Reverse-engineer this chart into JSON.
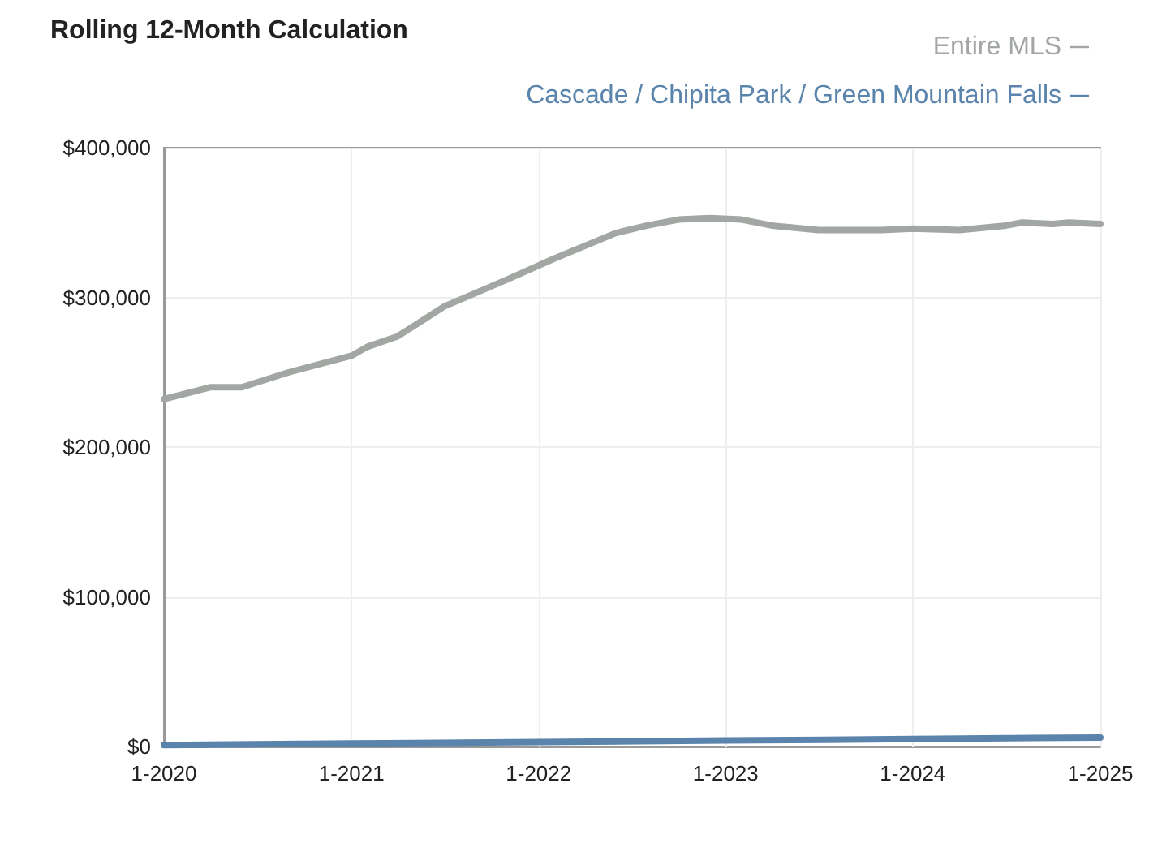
{
  "chart_data": {
    "type": "line",
    "title": "Rolling 12-Month Calculation",
    "xlim": [
      "2020-01",
      "2025-01"
    ],
    "xticks": [
      {
        "value": "2020-01",
        "label": "1-2020"
      },
      {
        "value": "2021-01",
        "label": "1-2021"
      },
      {
        "value": "2022-01",
        "label": "1-2022"
      },
      {
        "value": "2023-01",
        "label": "1-2023"
      },
      {
        "value": "2024-01",
        "label": "1-2024"
      },
      {
        "value": "2025-01",
        "label": "1-2025"
      }
    ],
    "ylim": [
      0,
      400000
    ],
    "yticks": [
      {
        "value": 0,
        "label": "$0"
      },
      {
        "value": 100000,
        "label": "$100,000"
      },
      {
        "value": 200000,
        "label": "$200,000"
      },
      {
        "value": 300000,
        "label": "$300,000"
      },
      {
        "value": 400000,
        "label": "$400,000"
      }
    ],
    "grid": true,
    "legend": "top right",
    "marker": "none",
    "line_style": "solid",
    "series": [
      {
        "name": "Entire MLS",
        "color": "#a3a7a3",
        "x": [
          "2020-01",
          "2020-04",
          "2020-06",
          "2020-09",
          "2021-01",
          "2021-02",
          "2021-04",
          "2021-07",
          "2021-11",
          "2022-02",
          "2022-06",
          "2022-08",
          "2022-10",
          "2022-12",
          "2023-02",
          "2023-04",
          "2023-07",
          "2023-11",
          "2024-01",
          "2024-04",
          "2024-07",
          "2024-08",
          "2024-10",
          "2024-11",
          "2025-01"
        ],
        "values": [
          232000,
          240000,
          240000,
          250000,
          261000,
          267000,
          274000,
          294000,
          312000,
          326000,
          343000,
          348000,
          352000,
          353000,
          352000,
          348000,
          345000,
          345000,
          346000,
          345000,
          348000,
          350000,
          349000,
          350000,
          349000
        ]
      },
      {
        "name": "Cascade / Chipita Park / Green Mountain Falls",
        "color": "#5a84ac",
        "x": [
          "2020-01",
          "2021-01",
          "2022-01",
          "2023-01",
          "2024-01",
          "2025-01"
        ],
        "values": [
          1000,
          2000,
          3000,
          4000,
          5000,
          6000
        ]
      }
    ]
  }
}
